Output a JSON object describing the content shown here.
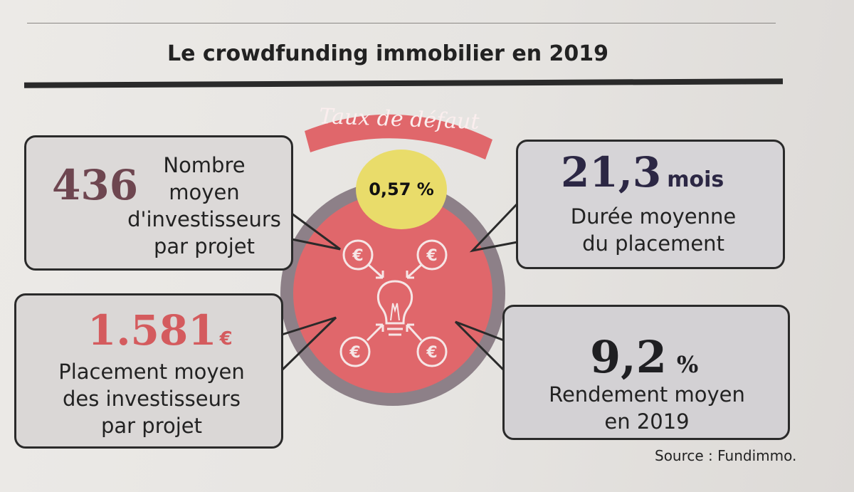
{
  "title": "Le crowdfunding immobilier en 2019",
  "center": {
    "banner": "Taux de défaut",
    "rate": "0,57 %"
  },
  "investors": {
    "value": "436",
    "lines": [
      "Nombre",
      "moyen",
      "d'investisseurs",
      "par projet"
    ]
  },
  "placement": {
    "value": "1.581",
    "unit": "€",
    "lines": [
      "Placement moyen",
      "des investisseurs",
      "par projet"
    ]
  },
  "duration": {
    "value": "21,3",
    "unit": "mois",
    "lines": [
      "Durée moyenne",
      "du placement"
    ]
  },
  "yield": {
    "value": "9,2",
    "unit": "%",
    "lines": [
      "Rendement moyen",
      "en 2019"
    ]
  },
  "source": "Source : Fundimmo.",
  "colors": {
    "accent_red": "#e0676b",
    "rate_yellow": "#e9dc6a",
    "ring_grey": "#8d8088"
  }
}
